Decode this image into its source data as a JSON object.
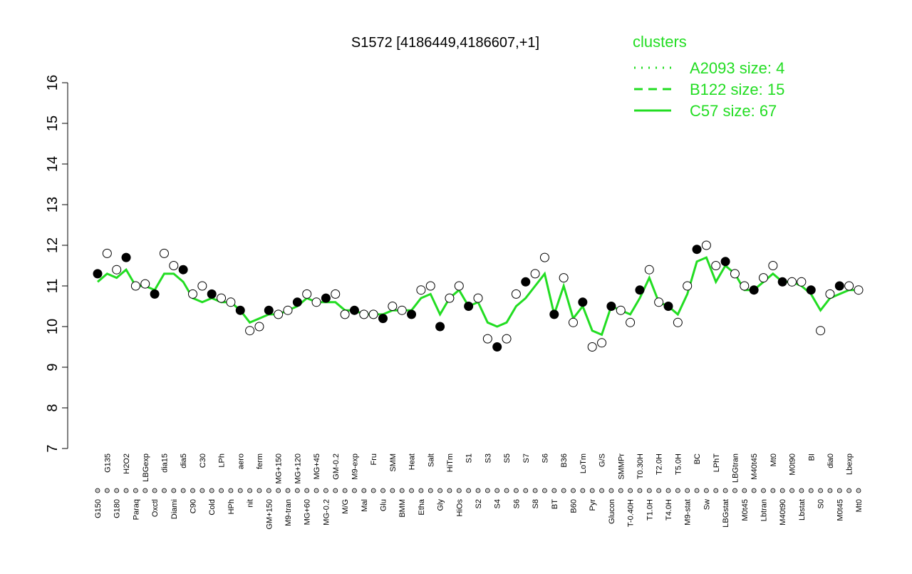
{
  "chart_data": {
    "type": "line",
    "title": "S1572 [4186449,4186607,+1]",
    "categories": [
      "G150",
      "G135",
      "G180",
      "H2O2",
      "Paraq",
      "LBGexp",
      "Oxctl",
      "dia15",
      "Diami",
      "dia5",
      "C90",
      "C30",
      "Cold",
      "LPh",
      "HPh",
      "aero",
      "nit",
      "ferm",
      "GM+150",
      "MG+150",
      "M9-tran",
      "MG+120",
      "MG+60",
      "MG+45",
      "MG-0.2",
      "GM-0.2",
      "M/G",
      "M9-exp",
      "Mal",
      "Fru",
      "Glu",
      "SMM",
      "BMM",
      "Heat",
      "Etha",
      "Salt",
      "Gly",
      "HiTm",
      "HiOs",
      "S1",
      "S2",
      "S3",
      "S4",
      "S5",
      "S6",
      "S7",
      "S8",
      "S6",
      "BT",
      "B36",
      "B60",
      "LoTm",
      "Pyr",
      "G/S",
      "Glucon",
      "SMMPr",
      "T-0.40H",
      "T0.30H",
      "T1.0H",
      "T2.0H",
      "T4.0H",
      "T5.0H",
      "M9-stat",
      "BC",
      "Sw",
      "LPhT",
      "LBGstat",
      "LBGtran",
      "M0t45",
      "M40t45",
      "Lbtran",
      "Mt0",
      "M40t90",
      "M0t90",
      "Lbstat",
      "BI",
      "S0",
      "dia0",
      "M0t45",
      "Lbexp",
      "Mt0"
    ],
    "values": [
      11.3,
      11.8,
      11.4,
      11.7,
      11.0,
      11.05,
      10.8,
      11.8,
      11.5,
      11.4,
      10.8,
      11.0,
      10.8,
      10.7,
      10.6,
      10.4,
      9.9,
      10.0,
      10.4,
      10.3,
      10.4,
      10.6,
      10.8,
      10.6,
      10.7,
      10.8,
      10.3,
      10.4,
      10.3,
      10.3,
      10.2,
      10.5,
      10.4,
      10.3,
      10.9,
      11.0,
      10.0,
      10.7,
      11.0,
      10.5,
      10.7,
      9.7,
      9.5,
      9.7,
      10.8,
      11.1,
      11.3,
      11.7,
      10.3,
      11.2,
      10.1,
      10.6,
      9.5,
      9.6,
      10.5,
      10.4,
      10.1,
      10.9,
      11.4,
      10.6,
      10.5,
      10.1,
      11.0,
      11.9,
      12.0,
      11.5,
      11.6,
      11.3,
      11.0,
      10.9,
      11.2,
      11.5,
      11.1,
      11.1,
      11.1,
      10.9,
      9.9,
      10.8,
      11.0,
      11.0,
      10.9
    ],
    "series": [
      {
        "name": "A2093 size: 4",
        "color": "#22dd22",
        "dash": "dotted"
      },
      {
        "name": "B122 size: 15",
        "color": "#22dd22",
        "dash": "dashed"
      },
      {
        "name": "C57 size: 67",
        "color": "#22dd22",
        "dash": "solid",
        "values": [
          11.1,
          11.3,
          11.2,
          11.4,
          11.0,
          11.0,
          10.9,
          11.3,
          11.3,
          11.1,
          10.7,
          10.6,
          10.7,
          10.6,
          10.6,
          10.4,
          10.1,
          10.2,
          10.3,
          10.3,
          10.4,
          10.5,
          10.7,
          10.6,
          10.6,
          10.6,
          10.4,
          10.4,
          10.3,
          10.3,
          10.3,
          10.4,
          10.4,
          10.4,
          10.7,
          10.8,
          10.3,
          10.7,
          10.9,
          10.5,
          10.6,
          10.1,
          10.0,
          10.1,
          10.5,
          10.7,
          11.0,
          11.3,
          10.3,
          11.0,
          10.2,
          10.5,
          9.9,
          9.8,
          10.5,
          10.4,
          10.3,
          10.7,
          11.2,
          10.6,
          10.5,
          10.3,
          10.8,
          11.6,
          11.7,
          11.1,
          11.5,
          11.3,
          10.9,
          10.9,
          11.1,
          11.3,
          11.1,
          11.1,
          11.0,
          10.8,
          10.4,
          10.7,
          10.8,
          10.9,
          10.9
        ]
      }
    ],
    "legend_title": "clusters",
    "ylim": [
      7,
      16
    ],
    "yticks": [
      7,
      8,
      9,
      10,
      11,
      12,
      13,
      14,
      15,
      16
    ]
  }
}
